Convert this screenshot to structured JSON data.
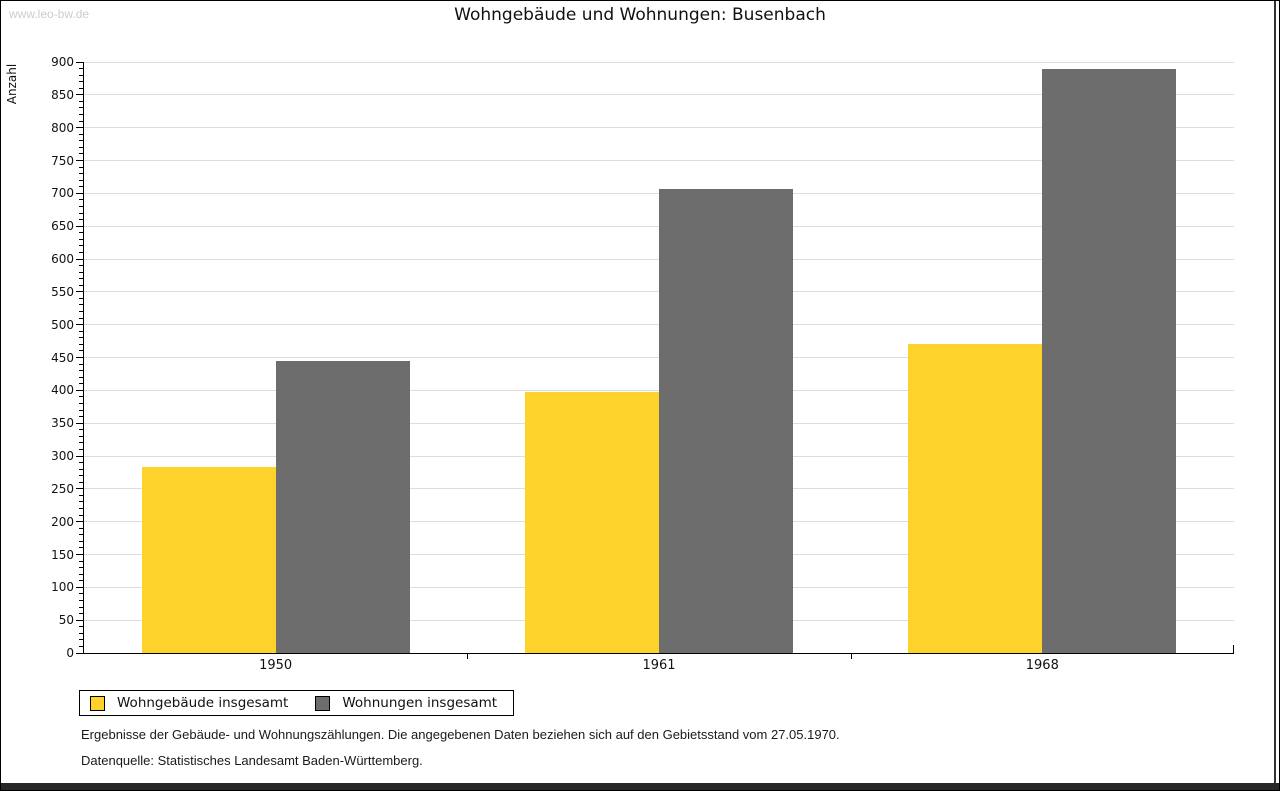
{
  "watermark": "www.leo-bw.de",
  "chart_data": {
    "type": "bar",
    "title": "Wohngebäude und Wohnungen: Busenbach",
    "categories": [
      "1950",
      "1961",
      "1968"
    ],
    "series": [
      {
        "name": "Wohngebäude insgesamt",
        "color": "#FDD32B",
        "values": [
          283,
          397,
          470
        ]
      },
      {
        "name": "Wohnungen insgesamt",
        "color": "#6D6D6D",
        "values": [
          444,
          707,
          889
        ]
      }
    ],
    "xlabel": "",
    "ylabel": "Anzahl",
    "ylim": [
      0,
      900
    ],
    "ytick_step": 50,
    "minor_tick_step": 10,
    "grid": true,
    "gridline_color": "#DDDDDD",
    "legend_position": "bottom-left"
  },
  "footer": {
    "line1": "Ergebnisse der Gebäude- und Wohnungszählungen. Die angegebenen Daten beziehen sich auf den Gebietsstand vom 27.05.1970.",
    "line2": "Datenquelle: Statistisches Landesamt Baden-Württemberg."
  }
}
